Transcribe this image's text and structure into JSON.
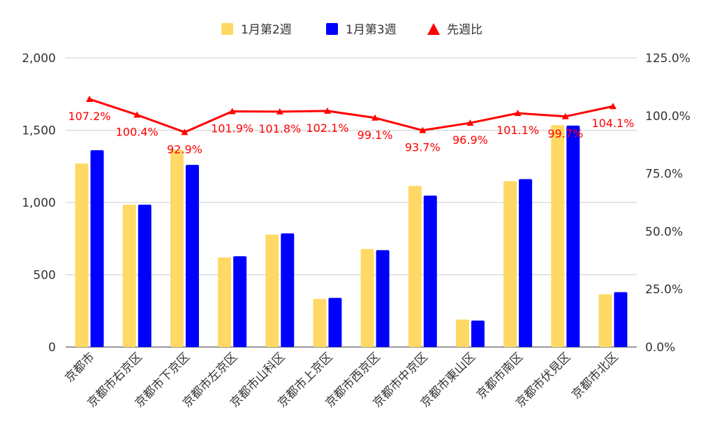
{
  "chart_data": {
    "type": "bar+line",
    "categories": [
      "京都市",
      "京都市右京区",
      "京都市下京区",
      "京都市左京区",
      "京都市山科区",
      "京都市上京区",
      "京都市西京区",
      "京都市中京区",
      "京都市東山区",
      "京都市南区",
      "京都市伏見区",
      "京都市北区"
    ],
    "series": [
      {
        "name": "1月第2週",
        "type": "bar",
        "axis": "left",
        "color": "#FFD966",
        "values": [
          1270,
          985,
          1365,
          620,
          778,
          333,
          678,
          1115,
          190,
          1148,
          1535,
          365
        ]
      },
      {
        "name": "1月第3週",
        "type": "bar",
        "axis": "left",
        "color": "#0000FF",
        "values": [
          1362,
          985,
          1260,
          628,
          786,
          340,
          670,
          1048,
          183,
          1162,
          1532,
          380
        ]
      },
      {
        "name": "先週比",
        "type": "line",
        "axis": "right",
        "color": "#FF0000",
        "marker": "triangle",
        "values": [
          107.2,
          100.4,
          92.9,
          101.9,
          101.8,
          102.1,
          99.1,
          93.7,
          96.9,
          101.1,
          99.7,
          104.1
        ],
        "labels": [
          "107.2%",
          "100.4%",
          "92.9%",
          "101.9%",
          "101.8%",
          "102.1%",
          "99.1%",
          "93.7%",
          "96.9%",
          "101.1%",
          "99.7%",
          "104.1%"
        ]
      }
    ],
    "left_axis": {
      "ylim": [
        0,
        2000
      ],
      "ticks": [
        0,
        500,
        1000,
        1500,
        2000
      ],
      "tick_labels": [
        "0",
        "500",
        "1,000",
        "1,500",
        "2,000"
      ]
    },
    "right_axis": {
      "ylim": [
        0,
        125
      ],
      "ticks": [
        0,
        25,
        50,
        75,
        100,
        125
      ],
      "tick_labels": [
        "0.0%",
        "25.0%",
        "50.0%",
        "75.0%",
        "100.0%",
        "125.0%"
      ]
    },
    "grid": true,
    "legend": "top-center",
    "title": "",
    "xlabel": "",
    "ylabel": ""
  }
}
